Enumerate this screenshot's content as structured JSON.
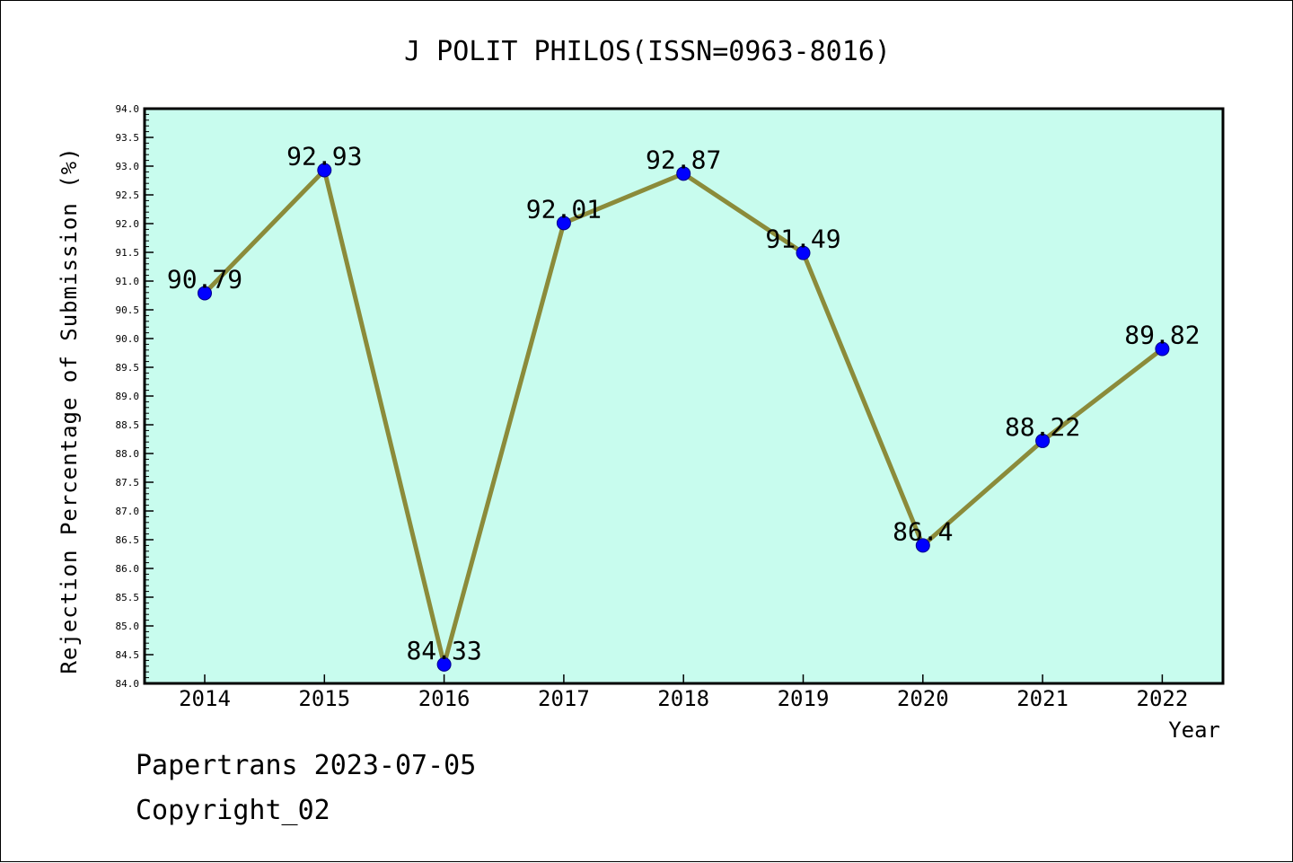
{
  "chart_data": {
    "type": "line",
    "title": "J POLIT PHILOS(ISSN=0963-8016)",
    "xlabel": "Year",
    "ylabel": "Rejection Percentage of Submission (%)",
    "categories": [
      "2014",
      "2015",
      "2016",
      "2017",
      "2018",
      "2019",
      "2020",
      "2021",
      "2022"
    ],
    "values": [
      90.79,
      92.93,
      84.33,
      92.01,
      92.87,
      91.49,
      86.4,
      88.22,
      89.82
    ],
    "data_labels": [
      "90.79",
      "92.93",
      "84.33",
      "92.01",
      "92.87",
      "91.49",
      "86.4",
      "88.22",
      "89.82"
    ],
    "ylim": [
      84.0,
      94.0
    ],
    "ytick_step": 0.5,
    "ytick_labels": [
      "84.0",
      "84.5",
      "85.0",
      "85.5",
      "86.0",
      "86.5",
      "87.0",
      "87.5",
      "88.0",
      "88.5",
      "89.0",
      "89.5",
      "90.0",
      "90.5",
      "91.0",
      "91.5",
      "92.0",
      "92.5",
      "93.0",
      "93.5",
      "94.0"
    ],
    "grid": false,
    "colors": {
      "plot_background": "#c8fcee",
      "line": "#8b8b3a",
      "marker": "#0000ff"
    }
  },
  "footer": {
    "line1": "Papertrans 2023-07-05",
    "line2": "Copyright_02"
  }
}
